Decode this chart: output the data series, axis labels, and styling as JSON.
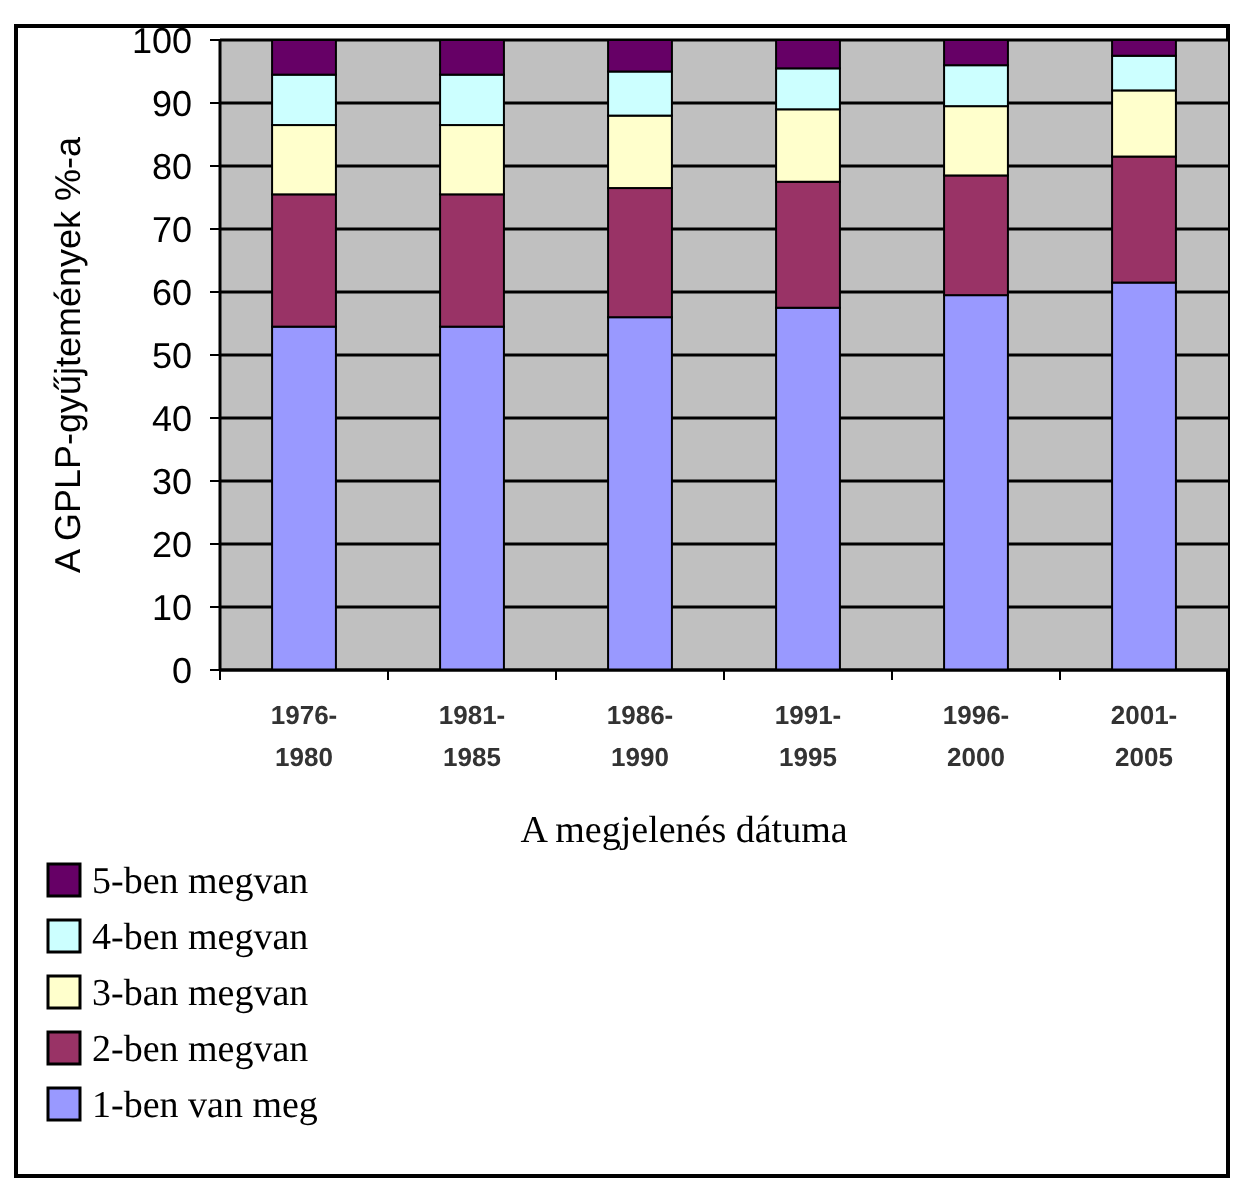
{
  "chart_data": {
    "type": "bar",
    "stacked": true,
    "xlabel": "A megjelenés dátuma",
    "ylabel": "A GPLP-gyűjtemények %-a",
    "categories": [
      "1976-1980",
      "1981-1985",
      "1986-1990",
      "1991-1995",
      "1996-2000",
      "2001-2005"
    ],
    "series": [
      {
        "name": "1-ben van meg",
        "color": "#9999ff",
        "values": [
          54.5,
          54.5,
          56,
          57.5,
          59.5,
          61.5
        ]
      },
      {
        "name": "2-ben megvan",
        "color": "#993366",
        "values": [
          21,
          21,
          20.5,
          20,
          19,
          20
        ]
      },
      {
        "name": "3-ban megvan",
        "color": "#ffffcc",
        "values": [
          11,
          11,
          11.5,
          11.5,
          11,
          10.5
        ]
      },
      {
        "name": "4-ben megvan",
        "color": "#ccffff",
        "values": [
          8,
          8,
          7,
          6.5,
          6.5,
          5.5
        ]
      },
      {
        "name": "5-ben megvan",
        "color": "#660066",
        "values": [
          5.5,
          5.5,
          5,
          4.5,
          4,
          2.5
        ]
      }
    ],
    "ylim": [
      0,
      100
    ],
    "yticks": [
      0,
      10,
      20,
      30,
      40,
      50,
      60,
      70,
      80,
      90,
      100
    ],
    "grid": "y",
    "legend": "bottom left"
  }
}
